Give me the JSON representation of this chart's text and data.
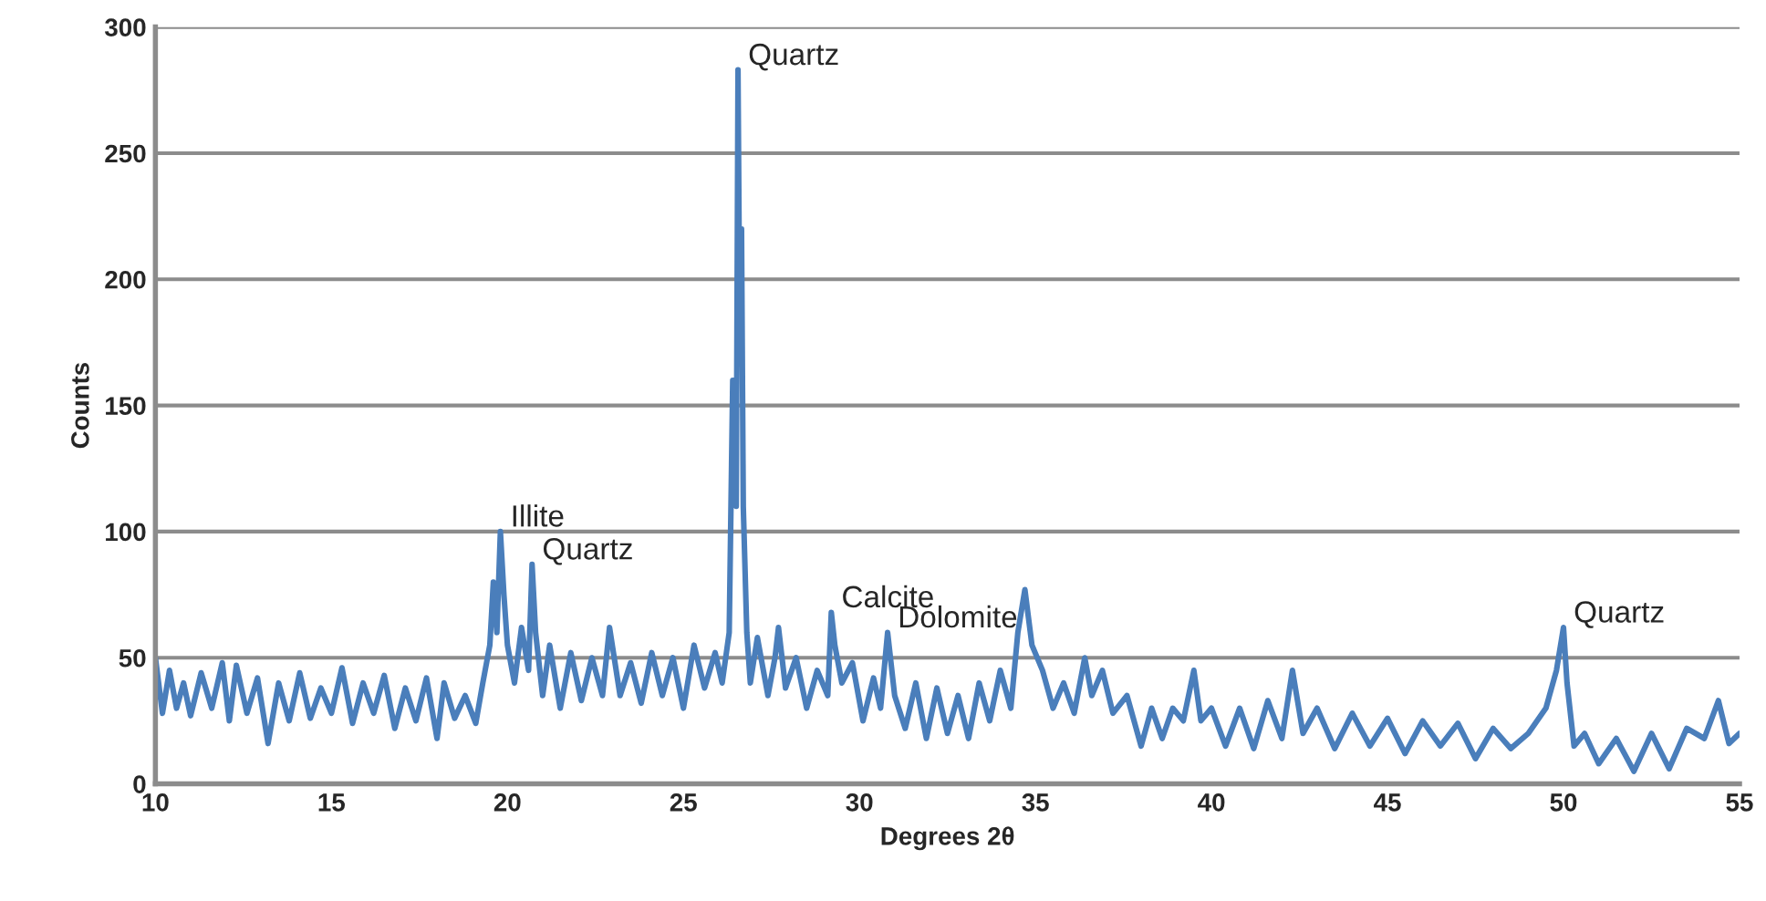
{
  "chart_data": {
    "type": "line",
    "xlabel": "Degrees 2θ",
    "ylabel": "Counts",
    "xlim": [
      10,
      55
    ],
    "xticks": [
      10,
      15,
      20,
      25,
      30,
      35,
      40,
      45,
      50,
      55
    ],
    "ylim": [
      0,
      300
    ],
    "yticks": [
      0,
      50,
      100,
      150,
      200,
      250,
      300
    ],
    "grid": "y",
    "legend": false,
    "marker": "none",
    "line_style": "solid",
    "color": "#4a7ebb",
    "annotations": [
      {
        "text": "Illite",
        "x": 19.8,
        "y": 100
      },
      {
        "text": "Quartz",
        "x": 20.7,
        "y": 87
      },
      {
        "text": "Quartz",
        "x": 26.55,
        "y": 283
      },
      {
        "text": "Calcite",
        "x": 29.2,
        "y": 68
      },
      {
        "text": "Dolomite",
        "x": 30.8,
        "y": 60
      },
      {
        "text": "Quartz",
        "x": 50,
        "y": 62
      }
    ],
    "x": [
      10,
      10.2,
      10.4,
      10.6,
      10.8,
      11,
      11.3,
      11.6,
      11.9,
      12.1,
      12.3,
      12.6,
      12.9,
      13.2,
      13.5,
      13.8,
      14.1,
      14.4,
      14.7,
      15,
      15.3,
      15.6,
      15.9,
      16.2,
      16.5,
      16.8,
      17.1,
      17.4,
      17.7,
      18,
      18.2,
      18.5,
      18.8,
      19.1,
      19.3,
      19.5,
      19.6,
      19.7,
      19.8,
      19.9,
      20,
      20.2,
      20.4,
      20.6,
      20.7,
      20.8,
      21,
      21.2,
      21.5,
      21.8,
      22.1,
      22.4,
      22.7,
      22.9,
      23.2,
      23.5,
      23.8,
      24.1,
      24.4,
      24.7,
      25,
      25.3,
      25.6,
      25.9,
      26.1,
      26.3,
      26.4,
      26.5,
      26.55,
      26.6,
      26.65,
      26.7,
      26.8,
      26.9,
      27.1,
      27.4,
      27.6,
      27.7,
      27.9,
      28.2,
      28.5,
      28.8,
      29.1,
      29.2,
      29.3,
      29.5,
      29.8,
      30.1,
      30.4,
      30.6,
      30.8,
      31,
      31.3,
      31.6,
      31.9,
      32.2,
      32.5,
      32.8,
      33.1,
      33.4,
      33.7,
      34,
      34.3,
      34.5,
      34.7,
      34.9,
      35.2,
      35.5,
      35.8,
      36.1,
      36.4,
      36.6,
      36.9,
      37.2,
      37.6,
      38,
      38.3,
      38.6,
      38.9,
      39.2,
      39.5,
      39.7,
      40,
      40.4,
      40.8,
      41.2,
      41.6,
      42,
      42.3,
      42.6,
      43,
      43.5,
      44,
      44.5,
      45,
      45.5,
      46,
      46.5,
      47,
      47.5,
      48,
      48.5,
      49,
      49.5,
      49.8,
      50,
      50.1,
      50.3,
      50.6,
      51,
      51.5,
      52,
      52.5,
      53,
      53.5,
      54,
      54.4,
      54.7,
      55
    ],
    "values": [
      50,
      28,
      45,
      30,
      40,
      27,
      44,
      30,
      48,
      25,
      47,
      28,
      42,
      16,
      40,
      25,
      44,
      26,
      38,
      28,
      46,
      24,
      40,
      28,
      43,
      22,
      38,
      25,
      42,
      18,
      40,
      26,
      35,
      24,
      40,
      55,
      80,
      60,
      100,
      75,
      55,
      40,
      62,
      45,
      87,
      60,
      35,
      55,
      30,
      52,
      33,
      50,
      35,
      62,
      35,
      48,
      32,
      52,
      35,
      50,
      30,
      55,
      38,
      52,
      40,
      60,
      160,
      110,
      283,
      180,
      220,
      110,
      60,
      40,
      58,
      35,
      50,
      62,
      38,
      50,
      30,
      45,
      35,
      68,
      55,
      40,
      48,
      25,
      42,
      30,
      60,
      35,
      22,
      40,
      18,
      38,
      20,
      35,
      18,
      40,
      25,
      45,
      30,
      60,
      77,
      55,
      45,
      30,
      40,
      28,
      50,
      35,
      45,
      28,
      35,
      15,
      30,
      18,
      30,
      25,
      45,
      25,
      30,
      15,
      30,
      14,
      33,
      18,
      45,
      20,
      30,
      14,
      28,
      15,
      26,
      12,
      25,
      15,
      24,
      10,
      22,
      14,
      20,
      30,
      45,
      62,
      40,
      15,
      20,
      8,
      18,
      5,
      20,
      6,
      22,
      18,
      33,
      16,
      20
    ]
  }
}
